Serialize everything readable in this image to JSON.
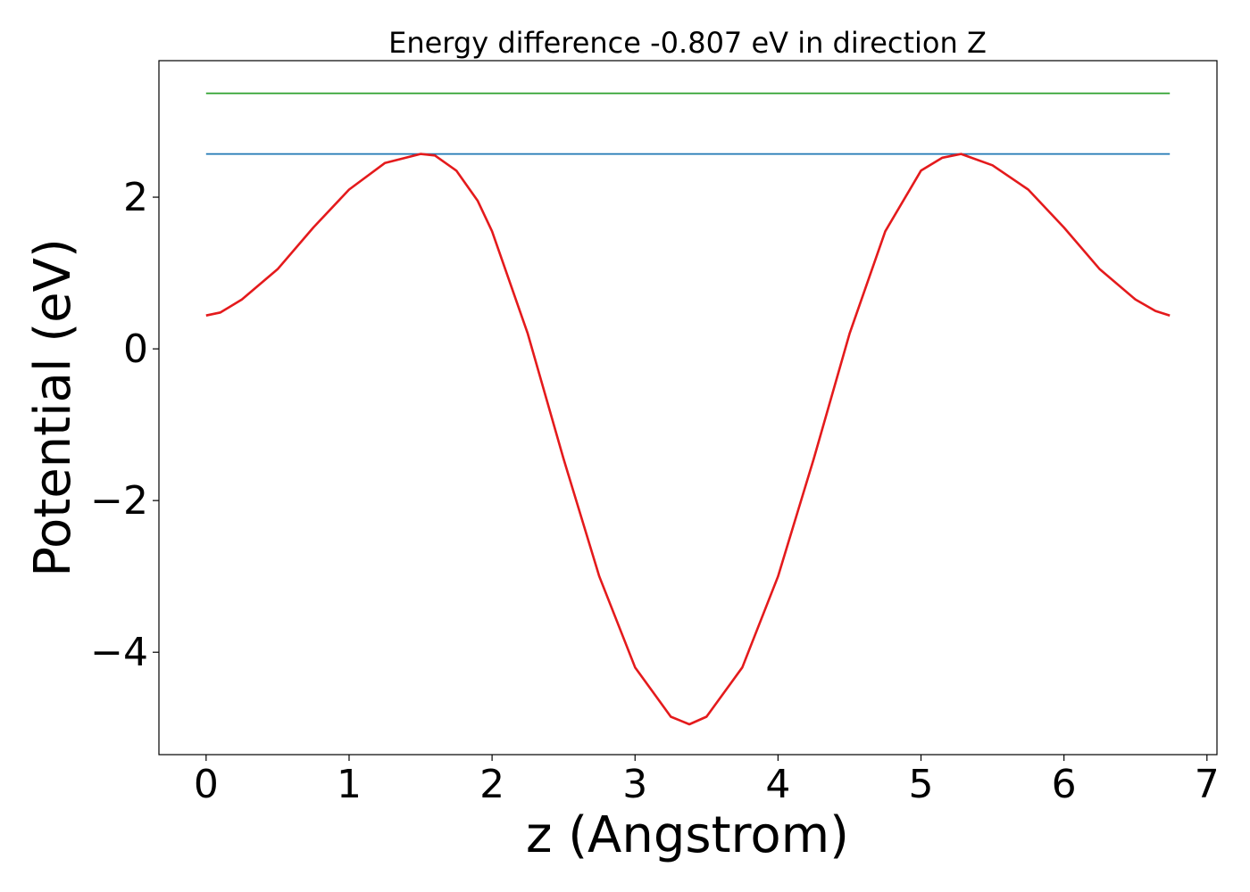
{
  "chart_data": {
    "type": "line",
    "title": "Energy difference -0.807 eV in direction Z",
    "xlabel": "z (Angstrom)",
    "ylabel": "Potential (eV)",
    "xlim": [
      -0.33,
      7.07
    ],
    "ylim": [
      -5.35,
      3.8
    ],
    "grid": false,
    "xticks": [
      0,
      1,
      2,
      3,
      4,
      5,
      6,
      7
    ],
    "xtick_labels": [
      "0",
      "1",
      "2",
      "3",
      "4",
      "5",
      "6",
      "7"
    ],
    "yticks": [
      -4,
      -2,
      0,
      2
    ],
    "ytick_labels": [
      "−4",
      "−2",
      "0",
      "2"
    ],
    "series": [
      {
        "color": "#2ca02c",
        "x": [
          0,
          6.74
        ],
        "y": [
          3.37,
          3.37
        ]
      },
      {
        "color": "#1f77b4",
        "x": [
          0,
          6.74
        ],
        "y": [
          2.57,
          2.57
        ]
      },
      {
        "color": "#e41a1c",
        "x": [
          0,
          0.1,
          0.25,
          0.5,
          0.75,
          1.0,
          1.25,
          1.5,
          1.6,
          1.75,
          1.9,
          2.0,
          2.25,
          2.5,
          2.75,
          3.0,
          3.25,
          3.38,
          3.5,
          3.75,
          4.0,
          4.25,
          4.5,
          4.75,
          5.0,
          5.15,
          5.28,
          5.5,
          5.75,
          6.0,
          6.25,
          6.5,
          6.64,
          6.74
        ],
        "y": [
          0.44,
          0.48,
          0.65,
          1.05,
          1.6,
          2.1,
          2.45,
          2.57,
          2.55,
          2.35,
          1.95,
          1.55,
          0.2,
          -1.45,
          -3.0,
          -4.2,
          -4.85,
          -4.95,
          -4.85,
          -4.2,
          -3.0,
          -1.45,
          0.2,
          1.55,
          2.35,
          2.52,
          2.57,
          2.42,
          2.1,
          1.6,
          1.05,
          0.65,
          0.5,
          0.44
        ]
      }
    ]
  }
}
